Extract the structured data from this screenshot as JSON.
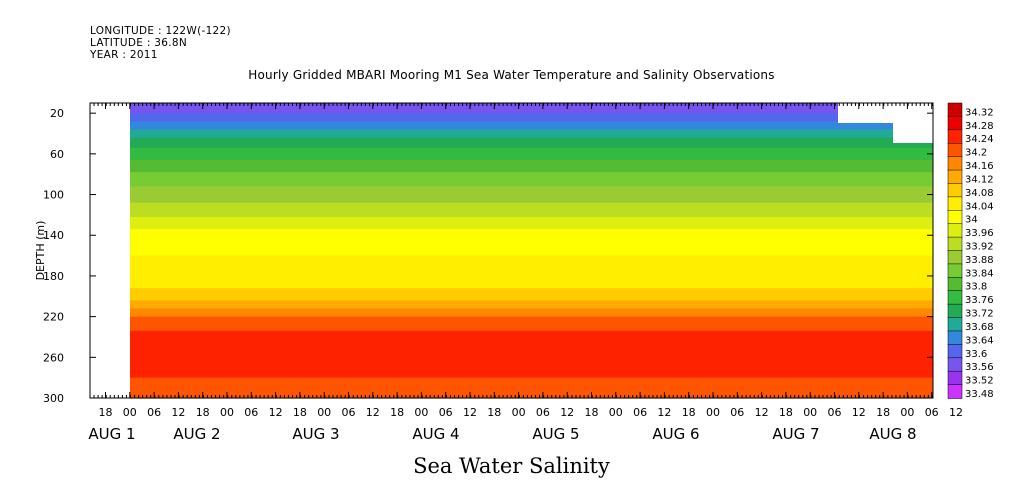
{
  "header": {
    "longitude": "LONGITUDE : 122W(-122)",
    "latitude": "LATITUDE : 36.8N",
    "year": "YEAR : 2011"
  },
  "chart_data": {
    "type": "heatmap",
    "title": "Hourly Gridded MBARI Mooring M1 Sea Water Temperature and Salinity Observations",
    "xlabel": "Sea Water Salinity",
    "ylabel": "DEPTH (m)",
    "ylim": [
      300,
      10
    ],
    "y_ticks": [
      20,
      60,
      100,
      140,
      180,
      220,
      260,
      300
    ],
    "x_hour_ticks": [
      "18",
      "00",
      "06",
      "12",
      "18",
      "00",
      "06",
      "12",
      "18",
      "00",
      "06",
      "12",
      "18",
      "00",
      "06",
      "12",
      "18",
      "00",
      "06",
      "12",
      "18",
      "00",
      "06",
      "12",
      "18",
      "00",
      "06",
      "12",
      "18",
      "00",
      "06",
      "12",
      "18",
      "00",
      "06",
      "12"
    ],
    "x_day_labels": [
      "AUG 1",
      "AUG 2",
      "AUG 3",
      "AUG 4",
      "AUG 5",
      "AUG 6",
      "AUG 7",
      "AUG 8"
    ],
    "colorbar_levels": [
      33.48,
      33.52,
      33.56,
      33.6,
      33.64,
      33.68,
      33.72,
      33.76,
      33.8,
      33.84,
      33.88,
      33.92,
      33.96,
      34,
      34.04,
      34.08,
      34.12,
      34.16,
      34.2,
      34.24,
      34.28,
      34.32
    ],
    "colorbar_colors": [
      "#cc33ff",
      "#9933ee",
      "#7755ee",
      "#5566ee",
      "#3388dd",
      "#22aa99",
      "#22aa55",
      "#33bb44",
      "#55bb33",
      "#77cc33",
      "#99cc33",
      "#bbdd22",
      "#ddee11",
      "#ffff00",
      "#ffee00",
      "#ffcc00",
      "#ffaa00",
      "#ff8800",
      "#ff5500",
      "#ff2200",
      "#ee0000",
      "#cc0000"
    ],
    "depth_profile": [
      {
        "depth": 10,
        "salinity": 33.58
      },
      {
        "depth": 20,
        "salinity": 33.6
      },
      {
        "depth": 40,
        "salinity": 33.7
      },
      {
        "depth": 60,
        "salinity": 33.78
      },
      {
        "depth": 80,
        "salinity": 33.85
      },
      {
        "depth": 100,
        "salinity": 33.9
      },
      {
        "depth": 120,
        "salinity": 33.95
      },
      {
        "depth": 140,
        "salinity": 34.02
      },
      {
        "depth": 160,
        "salinity": 34.04
      },
      {
        "depth": 180,
        "salinity": 34.05
      },
      {
        "depth": 200,
        "salinity": 34.1
      },
      {
        "depth": 220,
        "salinity": 34.2
      },
      {
        "depth": 240,
        "salinity": 34.26
      },
      {
        "depth": 260,
        "salinity": 34.28
      },
      {
        "depth": 280,
        "salinity": 34.24
      },
      {
        "depth": 300,
        "salinity": 34.2
      }
    ]
  }
}
